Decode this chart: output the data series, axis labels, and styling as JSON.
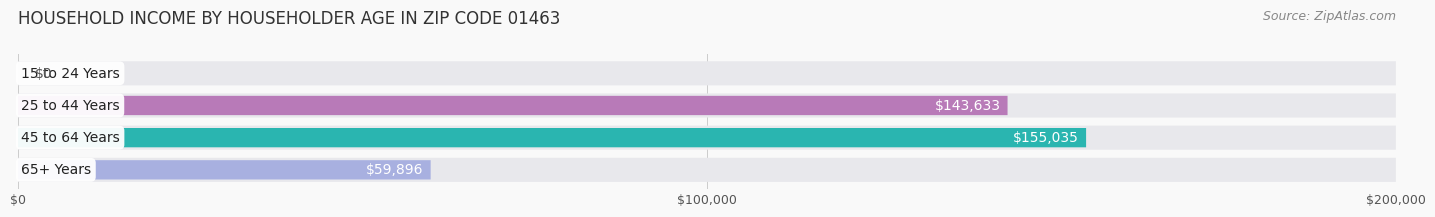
{
  "title": "HOUSEHOLD INCOME BY HOUSEHOLDER AGE IN ZIP CODE 01463",
  "source": "Source: ZipAtlas.com",
  "categories": [
    "15 to 24 Years",
    "25 to 44 Years",
    "45 to 64 Years",
    "65+ Years"
  ],
  "values": [
    0,
    143633,
    155035,
    59896
  ],
  "value_labels": [
    "$0",
    "$143,633",
    "$155,035",
    "$59,896"
  ],
  "bar_colors": [
    "#a8b8e8",
    "#b87ab8",
    "#2ab5b0",
    "#a8b0e0"
  ],
  "bar_bg_color": "#e8e8ec",
  "xlim": [
    0,
    200000
  ],
  "xtick_values": [
    0,
    100000,
    200000
  ],
  "xtick_labels": [
    "$0",
    "$100,000",
    "$200,000"
  ],
  "title_fontsize": 12,
  "source_fontsize": 9,
  "bar_label_fontsize": 10,
  "category_fontsize": 10,
  "value_label_color_inside": "#ffffff",
  "value_label_color_outside": "#555555",
  "background_color": "#f9f9f9",
  "fig_width": 14.06,
  "fig_height": 2.33
}
